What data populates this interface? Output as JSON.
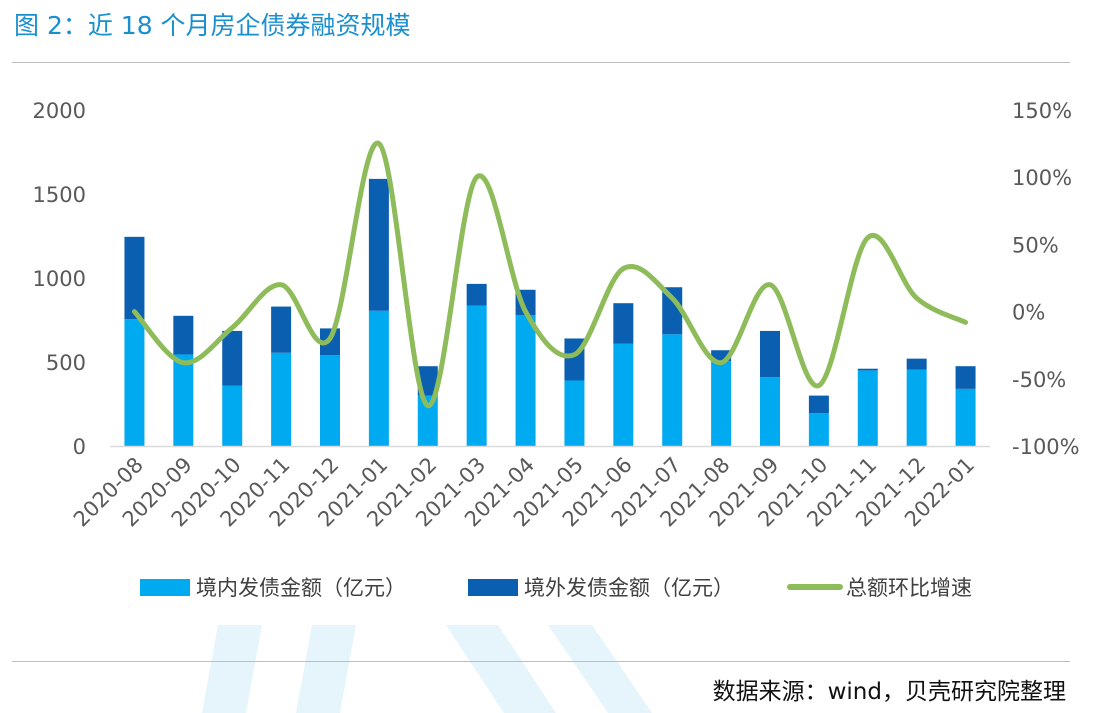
{
  "figure": {
    "title": "图 2：近 18 个月房企债券融资规模",
    "source": "数据来源：wind，贝壳研究院整理"
  },
  "colors": {
    "domestic": "#00aaf0",
    "overseas": "#0b5fb0",
    "growth": "#8fbc5a",
    "title": "#1a8fd0",
    "watermark": "#e6f4fc"
  },
  "chart_data": {
    "type": "bar",
    "stacked": true,
    "categories": [
      "2020-08",
      "2020-09",
      "2020-10",
      "2020-11",
      "2020-12",
      "2021-01",
      "2021-02",
      "2021-03",
      "2021-04",
      "2021-05",
      "2021-06",
      "2021-07",
      "2021-08",
      "2021-09",
      "2021-10",
      "2021-11",
      "2021-12",
      "2022-01"
    ],
    "series": [
      {
        "name": "境内发债金额（亿元）",
        "type": "bar",
        "axis": "left",
        "values": [
          755,
          545,
          360,
          555,
          540,
          805,
          300,
          835,
          780,
          390,
          610,
          665,
          505,
          410,
          195,
          450,
          455,
          340
        ]
      },
      {
        "name": "境外发债金额（亿元）",
        "type": "bar",
        "axis": "left",
        "values": [
          490,
          230,
          325,
          275,
          160,
          785,
          175,
          130,
          150,
          250,
          240,
          280,
          65,
          275,
          105,
          10,
          65,
          135
        ]
      },
      {
        "name": "总额环比增速",
        "type": "line",
        "axis": "right",
        "unit": "%",
        "values": [
          0,
          -38,
          -12,
          20,
          -20,
          125,
          -70,
          100,
          0,
          -32,
          32,
          10,
          -38,
          20,
          -55,
          55,
          10,
          -8
        ]
      }
    ],
    "y_left": {
      "min": 0,
      "max": 2000,
      "ticks": [
        "0",
        "500",
        "1000",
        "1500",
        "2000"
      ]
    },
    "y_right": {
      "min": -100,
      "max": 150,
      "ticks": [
        "-100%",
        "-50%",
        "0%",
        "50%",
        "100%",
        "150%"
      ]
    },
    "legend": "bottom",
    "grid": false
  }
}
